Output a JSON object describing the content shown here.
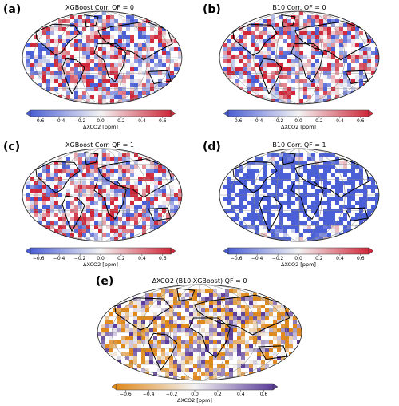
{
  "panels": [
    {
      "label": "(a)",
      "title": "XGBoost Corr. QF = 0",
      "scale": "diverging_rb",
      "bias": 0.0
    },
    {
      "label": "(b)",
      "title": "B10 Corr. QF = 0",
      "scale": "diverging_rb",
      "bias": 0.05
    },
    {
      "label": "(c)",
      "title": "XGBoost Corr. QF = 1",
      "scale": "diverging_rb",
      "bias": 0.05
    },
    {
      "label": "(d)",
      "title": "B10 Corr. QF = 1",
      "scale": "diverging_rb",
      "bias": -0.55
    },
    {
      "label": "(e)",
      "title": "ΔXCO2 (B10-XGBoost) QF = 0",
      "scale": "diverging_op",
      "bias": -0.1
    }
  ],
  "colorbar": {
    "ticks": [
      "−0.6",
      "−0.4",
      "−0.2",
      "0.0",
      "0.2",
      "0.4",
      "0.6"
    ],
    "label": "ΔXCO2 [ppm]",
    "vmin": -0.6,
    "vmax": 0.6
  },
  "colors": {
    "blue": "#4b5fd6",
    "red": "#d0283a",
    "white": "#f3f3f3",
    "orange": "#e08a1e",
    "purple": "#5c3e9a"
  }
}
